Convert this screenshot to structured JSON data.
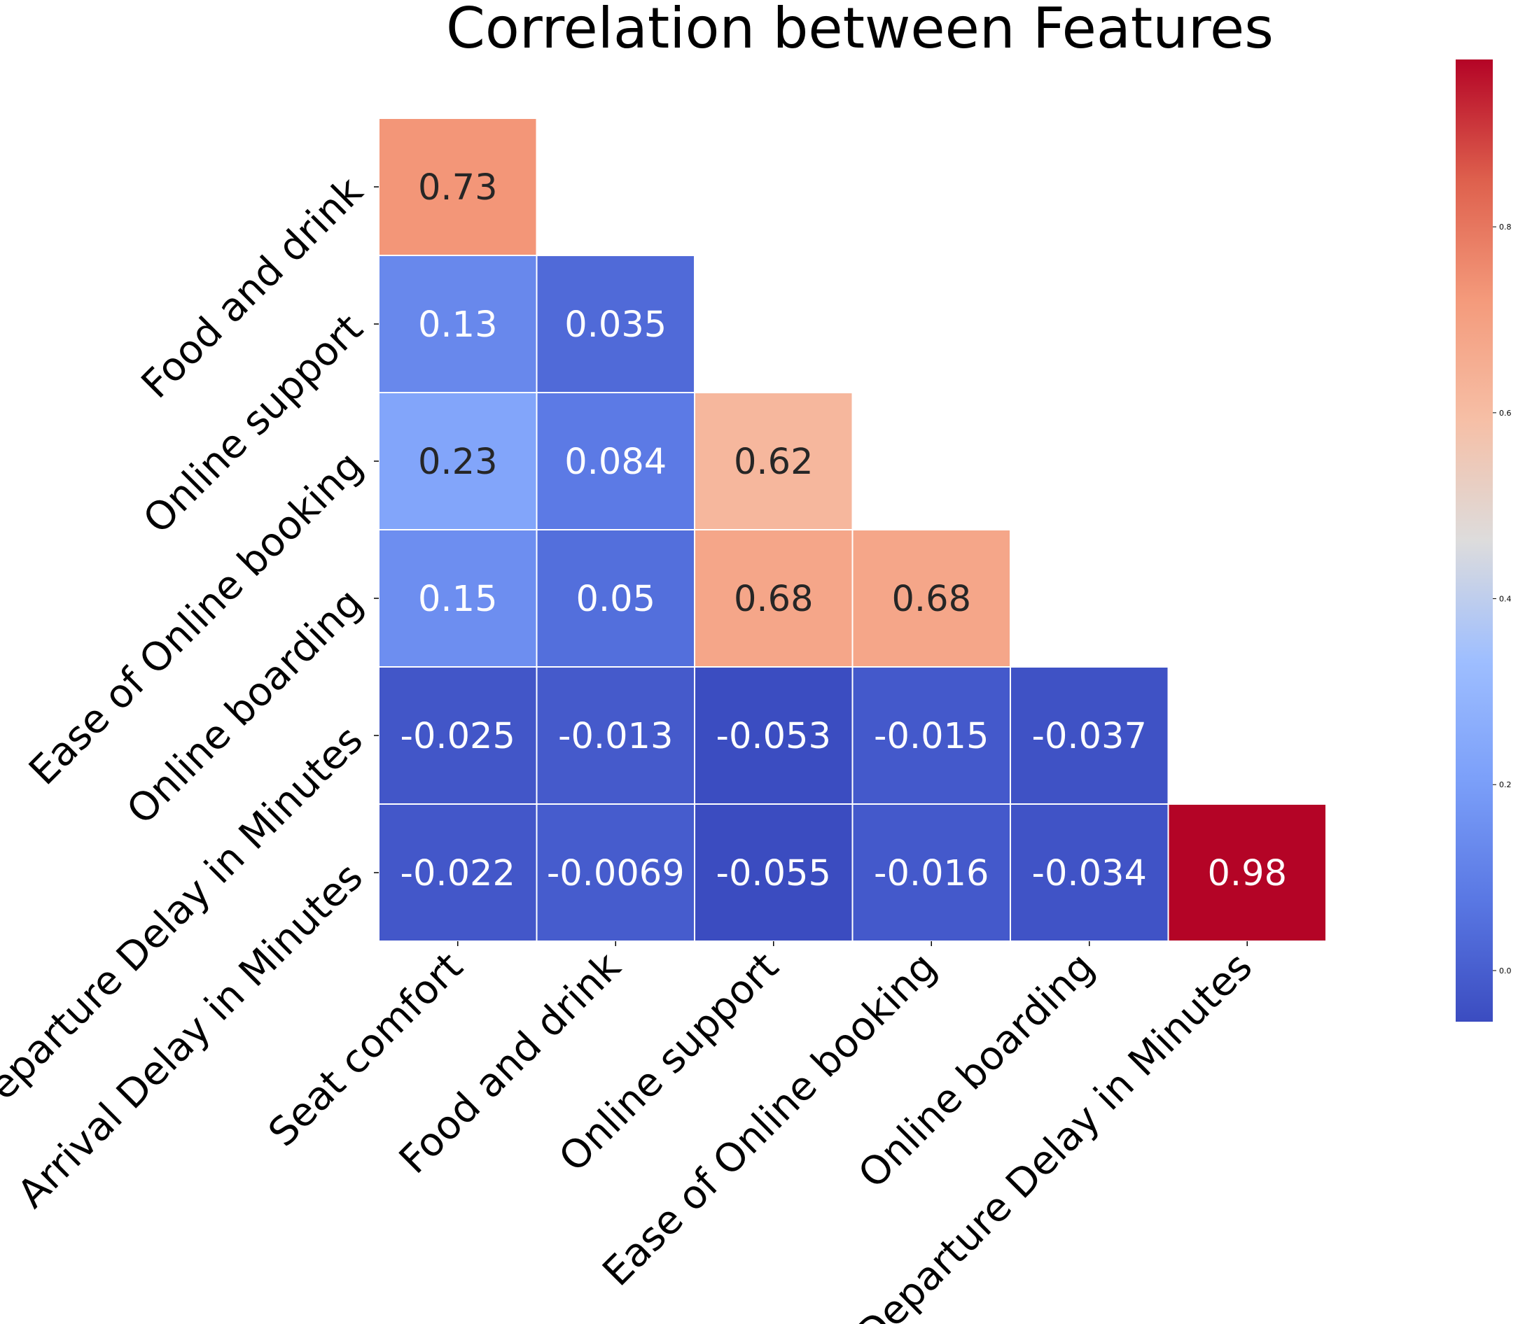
{
  "chart_data": {
    "type": "heatmap",
    "title": "Correlation between Features",
    "row_labels": [
      "Food and drink",
      "Online support",
      "Ease of Online booking",
      "Online boarding",
      "Departure Delay in Minutes",
      "Arrival Delay in Minutes"
    ],
    "col_labels": [
      "Seat comfort",
      "Food and drink",
      "Online support",
      "Ease of Online booking",
      "Online boarding",
      "Departure Delay in Minutes"
    ],
    "values": [
      [
        0.73,
        null,
        null,
        null,
        null,
        null
      ],
      [
        0.13,
        0.035,
        null,
        null,
        null,
        null
      ],
      [
        0.23,
        0.084,
        0.62,
        null,
        null,
        null
      ],
      [
        0.15,
        0.05,
        0.68,
        0.68,
        null,
        null
      ],
      [
        -0.025,
        -0.013,
        -0.053,
        -0.015,
        -0.037,
        null
      ],
      [
        -0.022,
        -0.0069,
        -0.055,
        -0.016,
        -0.034,
        0.98
      ]
    ],
    "value_labels": [
      [
        "0.73",
        "",
        "",
        "",
        "",
        ""
      ],
      [
        "0.13",
        "0.035",
        "",
        "",
        "",
        ""
      ],
      [
        "0.23",
        "0.084",
        "0.62",
        "",
        "",
        ""
      ],
      [
        "0.15",
        "0.05",
        "0.68",
        "0.68",
        "",
        ""
      ],
      [
        "-0.025",
        "-0.013",
        "-0.053",
        "-0.015",
        "-0.037",
        ""
      ],
      [
        "-0.022",
        "-0.0069",
        "-0.055",
        "-0.016",
        "-0.034",
        "0.98"
      ]
    ],
    "mask": "upper-triangle",
    "colormap": "coolwarm",
    "vmin": -0.055,
    "vmax": 0.98,
    "colorbar": {
      "position": "right",
      "ticks": [
        0.0,
        0.2,
        0.4,
        0.6,
        0.8
      ],
      "tick_labels": [
        "0.0",
        "0.2",
        "0.4",
        "0.6",
        "0.8"
      ]
    },
    "grid_color": "#ffffff"
  }
}
